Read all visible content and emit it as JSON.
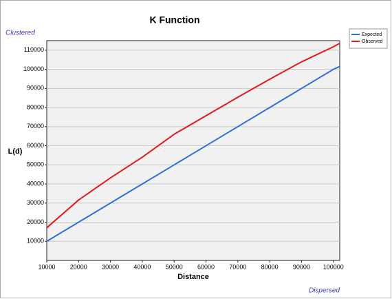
{
  "chart_data": {
    "type": "line",
    "title": "K Function",
    "corner_top": "Clustered",
    "corner_bottom": "Dispersed",
    "x_label": "Distance",
    "y_label": "L(d)",
    "x": [
      10000,
      20000,
      30000,
      40000,
      50000,
      60000,
      70000,
      80000,
      90000,
      100000,
      102000
    ],
    "series": [
      {
        "name": "Expected",
        "color": "#2b6fe0",
        "values": [
          10000,
          20000,
          30000,
          40000,
          50000,
          60000,
          70000,
          80000,
          90000,
          100000,
          101500
        ]
      },
      {
        "name": "Observed",
        "color": "#e81818",
        "values": [
          17100,
          31600,
          43200,
          54000,
          66000,
          75700,
          85400,
          94800,
          103900,
          111800,
          113600
        ]
      }
    ],
    "xlim": [
      10000,
      102000
    ],
    "xticks": [
      10000,
      20000,
      30000,
      40000,
      50000,
      60000,
      70000,
      80000,
      90000,
      100000
    ],
    "ylim": [
      0,
      115000
    ],
    "yticks": [
      10000,
      20000,
      30000,
      40000,
      50000,
      60000,
      70000,
      80000,
      90000,
      100000,
      110000
    ],
    "grid": true,
    "legend": "top-right"
  }
}
